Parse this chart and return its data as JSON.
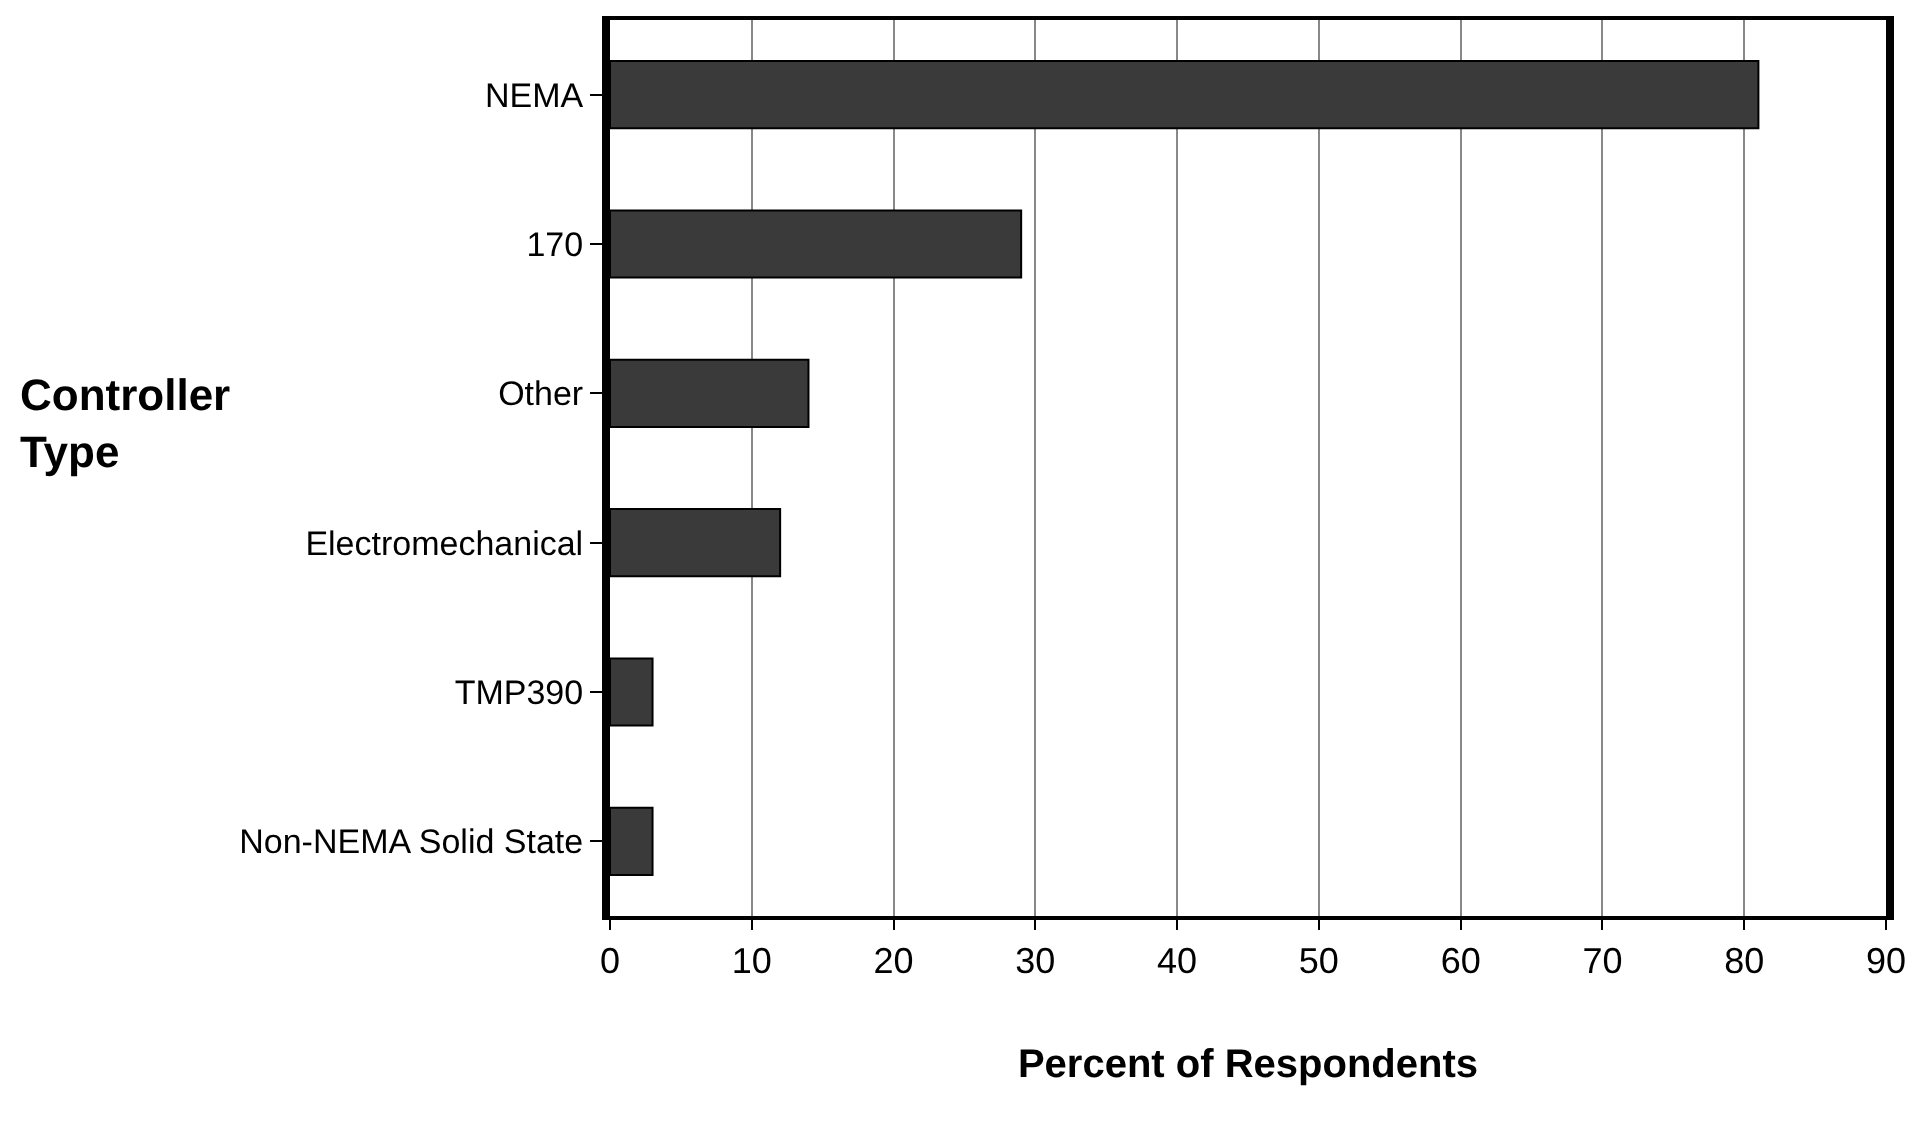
{
  "chart_data": {
    "type": "bar",
    "orientation": "horizontal",
    "categories": [
      "NEMA",
      "170",
      "Other",
      "Electromechanical",
      "TMP390",
      "Non-NEMA Solid State"
    ],
    "values": [
      81,
      29,
      14,
      12,
      3,
      3
    ],
    "color": "#3a3a3a",
    "xlabel": "Percent of Respondents",
    "ylabel": "Controller Type",
    "xlim": [
      0,
      90
    ],
    "xticks": [
      0,
      10,
      20,
      30,
      40,
      50,
      60,
      70,
      80,
      90
    ],
    "grid": "x"
  }
}
